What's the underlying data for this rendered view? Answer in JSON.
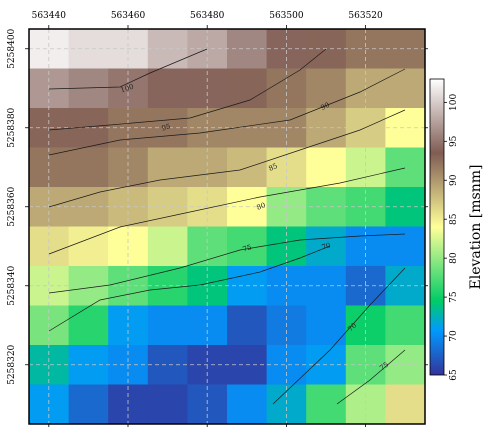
{
  "chart_data": {
    "type": "heatmap",
    "title": "",
    "xlabel": "",
    "ylabel": "",
    "x_ticks": [
      563440,
      563460,
      563480,
      563500,
      563520
    ],
    "y_ticks": [
      5258320,
      5258340,
      5258360,
      5258380,
      5258400
    ],
    "xlim": [
      563435,
      563535
    ],
    "ylim": [
      5258305,
      5258405
    ],
    "grid": true,
    "colormap": "terrain",
    "cell_x_edges": [
      563435,
      563445,
      563455,
      563465,
      563475,
      563485,
      563495,
      563505,
      563515,
      563525,
      563535
    ],
    "cell_y_edges": [
      5258305,
      5258315,
      5258325,
      5258335,
      5258345,
      5258355,
      5258365,
      5258375,
      5258385,
      5258395,
      5258405
    ],
    "values": [
      [
        102,
        101,
        101,
        99,
        98,
        96,
        94,
        93,
        92,
        92
      ],
      [
        97,
        96,
        95,
        94,
        94,
        93,
        92,
        91,
        89,
        89
      ],
      [
        93,
        93,
        92,
        92,
        91,
        91,
        91,
        89,
        87,
        84
      ],
      [
        92,
        92,
        91,
        89,
        89,
        88,
        86,
        84,
        82,
        78
      ],
      [
        89,
        89,
        88,
        87,
        86,
        84,
        80,
        78,
        77,
        74
      ],
      [
        86,
        85,
        84,
        82,
        78,
        77,
        74,
        72,
        70,
        70
      ],
      [
        82,
        80,
        78,
        76,
        74,
        71,
        70,
        70,
        68,
        72
      ],
      [
        79,
        76,
        71,
        70,
        70,
        67,
        69,
        70,
        75,
        77
      ],
      [
        73,
        71,
        70,
        67,
        66,
        66,
        70,
        71,
        78,
        80
      ],
      [
        71,
        68,
        66,
        66,
        67,
        70,
        72,
        77,
        81,
        86
      ]
    ],
    "contours": [
      {
        "level": 100,
        "label": "100"
      },
      {
        "level": 95,
        "label": "95"
      },
      {
        "level": 90,
        "label": "90"
      },
      {
        "level": 85,
        "label": "85"
      },
      {
        "level": 80,
        "label": "80"
      },
      {
        "level": 75,
        "label": "75"
      },
      {
        "level": 70,
        "label": "70"
      },
      {
        "level": 70,
        "label": "70"
      },
      {
        "level": 75,
        "label": "75"
      }
    ],
    "colorbar": {
      "label": "Elevation [msnm]",
      "range": [
        65,
        103
      ],
      "ticks": [
        65,
        70,
        75,
        80,
        85,
        90,
        95,
        100
      ]
    }
  }
}
